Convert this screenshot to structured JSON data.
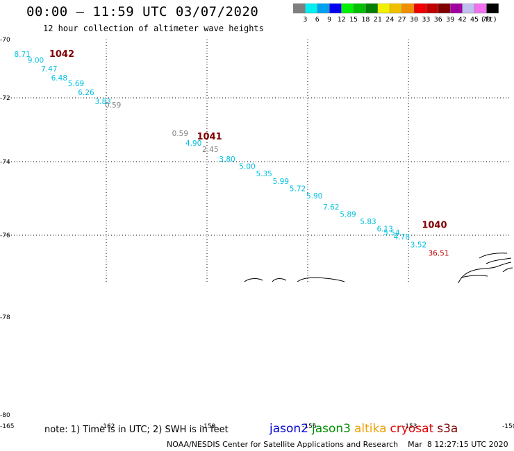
{
  "header": {
    "title": "00:00 – 11:59 UTC 03/07/2020",
    "subtitle": "12 hour collection of altimeter wave heights"
  },
  "colorbar": {
    "colors": [
      "#7f7f7f",
      "#00f0f0",
      "#00a0f0",
      "#0000f0",
      "#00f000",
      "#00c000",
      "#008000",
      "#f0f000",
      "#f0c000",
      "#f09000",
      "#f00000",
      "#c00000",
      "#800000",
      "#a000a0",
      "#c0c0f0",
      "#f070f0",
      "#000000"
    ],
    "labels": [
      "3",
      "6",
      "9",
      "12",
      "15",
      "18",
      "21",
      "24",
      "27",
      "30",
      "33",
      "36",
      "39",
      "42",
      "45",
      "70"
    ],
    "unit": "(ft)"
  },
  "footer": {
    "note": "note: 1) Time is in UTC; 2) SWH is in feet",
    "credit": "NOAA/NESDIS Center for Satellite Applications and Research    Mar  8 12:27:15 UTC 2020",
    "satellites": [
      {
        "name": "jason2",
        "color": "#0000d0"
      },
      {
        "name": "jason3",
        "color": "#009000"
      },
      {
        "name": "altika",
        "color": "#f0a000"
      },
      {
        "name": "cryosat",
        "color": "#e00000"
      },
      {
        "name": "s3a",
        "color": "#800000"
      }
    ]
  },
  "chart_data": {
    "type": "scatter",
    "title": "12 hour collection of altimeter wave heights",
    "xlabel": "",
    "ylabel": "",
    "xlim": [
      -165,
      -150
    ],
    "ylim": [
      -80,
      -70
    ],
    "x_ticks": [
      "-165",
      "-162",
      "-159",
      "-156",
      "-153",
      "-150"
    ],
    "y_ticks": [
      "-70",
      "-72",
      "-74",
      "-76",
      "-78",
      "-80"
    ],
    "grid": true,
    "pressure_labels": [
      {
        "text": "1042",
        "lon": -163.7,
        "lat": -70.6
      },
      {
        "text": "1041",
        "lon": -159.3,
        "lat": -73.3
      },
      {
        "text": "1040",
        "lon": -152.6,
        "lat": -75.8
      }
    ],
    "points": [
      {
        "lon": -164.5,
        "lat": -70.6,
        "swh": "8.71",
        "color": "#00c0e0"
      },
      {
        "lon": -164.1,
        "lat": -70.8,
        "swh": "9.00",
        "color": "#00c0e0"
      },
      {
        "lon": -163.7,
        "lat": -71.1,
        "swh": "7.47",
        "color": "#00c0e0"
      },
      {
        "lon": -163.4,
        "lat": -71.4,
        "swh": "6.48",
        "color": "#00c0e0"
      },
      {
        "lon": -162.9,
        "lat": -71.6,
        "swh": "5.69",
        "color": "#00c0e0"
      },
      {
        "lon": -162.6,
        "lat": -71.9,
        "swh": "6.26",
        "color": "#00c0e0"
      },
      {
        "lon": -162.1,
        "lat": -72.2,
        "swh": "3.83",
        "color": "#00c0e0"
      },
      {
        "lon": -161.8,
        "lat": -72.3,
        "swh": "0.59",
        "color": "#7f7f7f"
      },
      {
        "lon": -159.8,
        "lat": -73.2,
        "swh": "0.59",
        "color": "#7f7f7f"
      },
      {
        "lon": -159.4,
        "lat": -73.5,
        "swh": "4.90",
        "color": "#00c0e0"
      },
      {
        "lon": -158.9,
        "lat": -73.7,
        "swh": "2.45",
        "color": "#7f7f7f"
      },
      {
        "lon": -158.4,
        "lat": -74.0,
        "swh": "3.80",
        "color": "#00c0e0"
      },
      {
        "lon": -157.8,
        "lat": -74.2,
        "swh": "5.00",
        "color": "#00c0e0"
      },
      {
        "lon": -157.3,
        "lat": -74.4,
        "swh": "5.35",
        "color": "#00c0e0"
      },
      {
        "lon": -156.8,
        "lat": -74.6,
        "swh": "5.99",
        "color": "#00c0e0"
      },
      {
        "lon": -156.3,
        "lat": -74.8,
        "swh": "5.72",
        "color": "#00c0e0"
      },
      {
        "lon": -155.8,
        "lat": -75.0,
        "swh": "5.90",
        "color": "#00c0e0"
      },
      {
        "lon": -155.3,
        "lat": -75.3,
        "swh": "7.62",
        "color": "#00c0e0"
      },
      {
        "lon": -154.8,
        "lat": -75.5,
        "swh": "5.89",
        "color": "#00c0e0"
      },
      {
        "lon": -154.2,
        "lat": -75.7,
        "swh": "5.83",
        "color": "#00c0e0"
      },
      {
        "lon": -153.7,
        "lat": -75.9,
        "swh": "6.13",
        "color": "#00c0e0"
      },
      {
        "lon": -153.5,
        "lat": -76.0,
        "swh": "5.54",
        "color": "#00c0e0"
      },
      {
        "lon": -153.2,
        "lat": -76.1,
        "swh": "4.78",
        "color": "#00c0e0"
      },
      {
        "lon": -152.7,
        "lat": -76.3,
        "swh": "3.52",
        "color": "#00c0e0"
      },
      {
        "lon": -152.1,
        "lat": -76.5,
        "swh": "36.51",
        "color": "#c00000"
      }
    ]
  }
}
